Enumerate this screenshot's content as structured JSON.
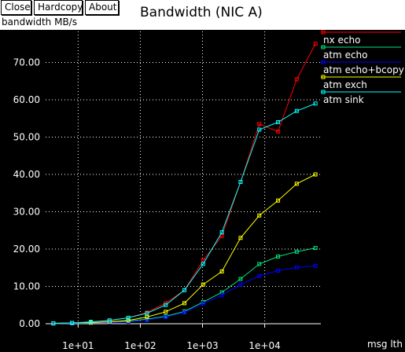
{
  "toolbar": {
    "close_label": "Close",
    "hardcopy_label": "Hardcopy",
    "about_label": "About"
  },
  "window": {
    "title": "Bandwidth (NIC A)",
    "y_units": "bandwidth MB/s",
    "x_units": "msg lth"
  },
  "colors": {
    "background": "#000000",
    "grid": "#ffffff",
    "text": "#ffffff"
  },
  "chart_data": {
    "type": "line",
    "title": "Bandwidth (NIC A)",
    "ylabel": "bandwidth MB/s",
    "xlabel": "msg lth",
    "xscale": "log",
    "xlim": [
      3,
      80000
    ],
    "ylim": [
      0,
      80
    ],
    "x_ticks": [
      10,
      100,
      1000,
      10000
    ],
    "x_tick_labels": [
      "1e+01",
      "1e+02",
      "1e+03",
      "1e+04"
    ],
    "y_ticks": [
      0,
      10,
      20,
      30,
      40,
      50,
      60,
      70
    ],
    "y_tick_labels": [
      "0.00",
      "10.00",
      "20.00",
      "30.00",
      "40.00",
      "50.00",
      "60.00",
      "70.00"
    ],
    "grid": true,
    "legend_position": "top-right",
    "series": [
      {
        "name": "nx echo",
        "color": "#ff0000",
        "x": [
          4,
          8,
          16,
          32,
          64,
          128,
          256,
          512,
          1024,
          2048,
          4096,
          8192,
          16384,
          32768,
          65536
        ],
        "y": [
          0.1,
          0.2,
          0.4,
          0.8,
          1.6,
          3,
          5.5,
          9,
          17,
          23.5,
          38,
          53.5,
          51.5,
          65.5,
          75
        ]
      },
      {
        "name": "atm echo",
        "color": "#00e880",
        "x": [
          4,
          8,
          16,
          32,
          64,
          128,
          256,
          512,
          1024,
          2048,
          4096,
          8192,
          16384,
          32768,
          65536
        ],
        "y": [
          0.05,
          0.1,
          0.2,
          0.4,
          0.7,
          1.2,
          2,
          3.3,
          5.8,
          8.4,
          12,
          16,
          18,
          19.3,
          20.3
        ]
      },
      {
        "name": "atm echo+bcopy",
        "color": "#0000ff",
        "x": [
          4,
          8,
          16,
          32,
          64,
          128,
          256,
          512,
          1024,
          2048,
          4096,
          8192,
          16384,
          32768,
          65536
        ],
        "y": [
          0.05,
          0.1,
          0.2,
          0.3,
          0.5,
          1,
          1.8,
          3,
          5.4,
          7.6,
          10.5,
          12.8,
          14.2,
          15.1,
          15.5
        ]
      },
      {
        "name": "atm exch",
        "color": "#ffff00",
        "x": [
          4,
          8,
          16,
          32,
          64,
          128,
          256,
          512,
          1024,
          2048,
          4096,
          8192,
          16384,
          32768,
          65536
        ],
        "y": [
          0.1,
          0.2,
          0.3,
          0.5,
          0.9,
          1.8,
          3.2,
          5.5,
          10.5,
          14,
          23,
          29,
          33,
          37.5,
          40
        ]
      },
      {
        "name": "atm sink",
        "color": "#00ffff",
        "x": [
          4,
          8,
          16,
          32,
          64,
          128,
          256,
          512,
          1024,
          2048,
          4096,
          8192,
          16384,
          32768,
          65536
        ],
        "y": [
          0.1,
          0.2,
          0.5,
          0.9,
          1.6,
          2.8,
          5,
          9,
          16,
          24.5,
          38,
          52,
          54,
          57,
          59
        ]
      }
    ]
  }
}
